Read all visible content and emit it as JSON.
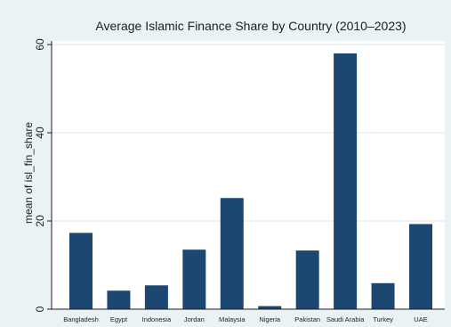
{
  "chart_data": {
    "type": "bar",
    "title": "Average Islamic Finance Share by Country (2010–2023)",
    "xlabel": "",
    "ylabel": "mean of isl_fin_share",
    "categories": [
      "Bangladesh",
      "Egypt",
      "Indonesia",
      "Jordan",
      "Malaysia",
      "Nigeria",
      "Pakistan",
      "Saudi Arabia",
      "Turkey",
      "UAE"
    ],
    "values": [
      17.3,
      4.2,
      5.4,
      13.5,
      25.2,
      0.7,
      13.3,
      58.0,
      5.9,
      19.3
    ],
    "ylim": [
      0,
      60
    ],
    "yticks": [
      0,
      20,
      40,
      60
    ],
    "ytick_labels": [
      "0",
      "20",
      "40",
      "60"
    ],
    "grid": true,
    "legend": "none",
    "bar_color": "#1c4770",
    "plot_background": "#ffffff",
    "frame_background": "#eaf2f3"
  }
}
